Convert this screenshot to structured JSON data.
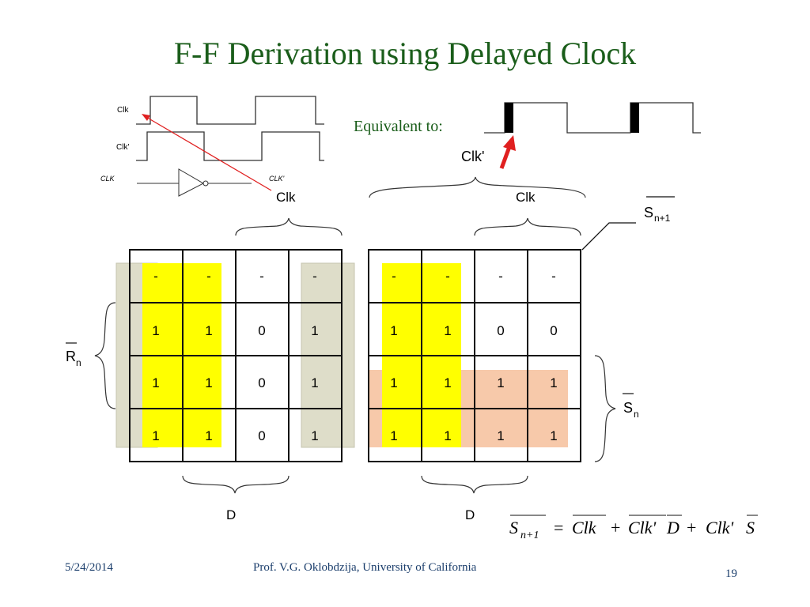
{
  "title": "F-F Derivation using Delayed Clock",
  "timing": {
    "clk_label": "Clk",
    "clk_prime_label": "Clk'",
    "inverter_in_label": "CLK",
    "inverter_out_label": "CLK'"
  },
  "equivalent": {
    "text": "Equivalent to:",
    "clk_prime_label": "Clk'"
  },
  "kmap_left": {
    "top_label": "Clk",
    "side_label": "R",
    "side_sub": "n",
    "bottom_label": "D",
    "cells": [
      [
        "-",
        "-",
        "-",
        "-"
      ],
      [
        "1",
        "1",
        "0",
        "1"
      ],
      [
        "1",
        "1",
        "0",
        "1"
      ],
      [
        "1",
        "1",
        "0",
        "1"
      ]
    ]
  },
  "kmap_right": {
    "top_label": "Clk",
    "out_label": "S",
    "out_sub": "n+1",
    "side_label": "S",
    "side_sub": "n",
    "bottom_label": "D",
    "cells": [
      [
        "-",
        "-",
        "-",
        "-"
      ],
      [
        "1",
        "1",
        "0",
        "0"
      ],
      [
        "1",
        "1",
        "1",
        "1"
      ],
      [
        "1",
        "1",
        "1",
        "1"
      ]
    ]
  },
  "equation": {
    "lhs": "S",
    "lhs_sub": "n+1",
    "eq": "=",
    "t1": "Clk",
    "plus1": "+",
    "t2a": "Clk'",
    "t2b": "D",
    "plus2": "+",
    "t3a": "Clk'",
    "t3b": "S"
  },
  "footer": {
    "date": "5/24/2014",
    "author": "Prof. V.G. Oklobdzija, University of California",
    "page": "19"
  }
}
